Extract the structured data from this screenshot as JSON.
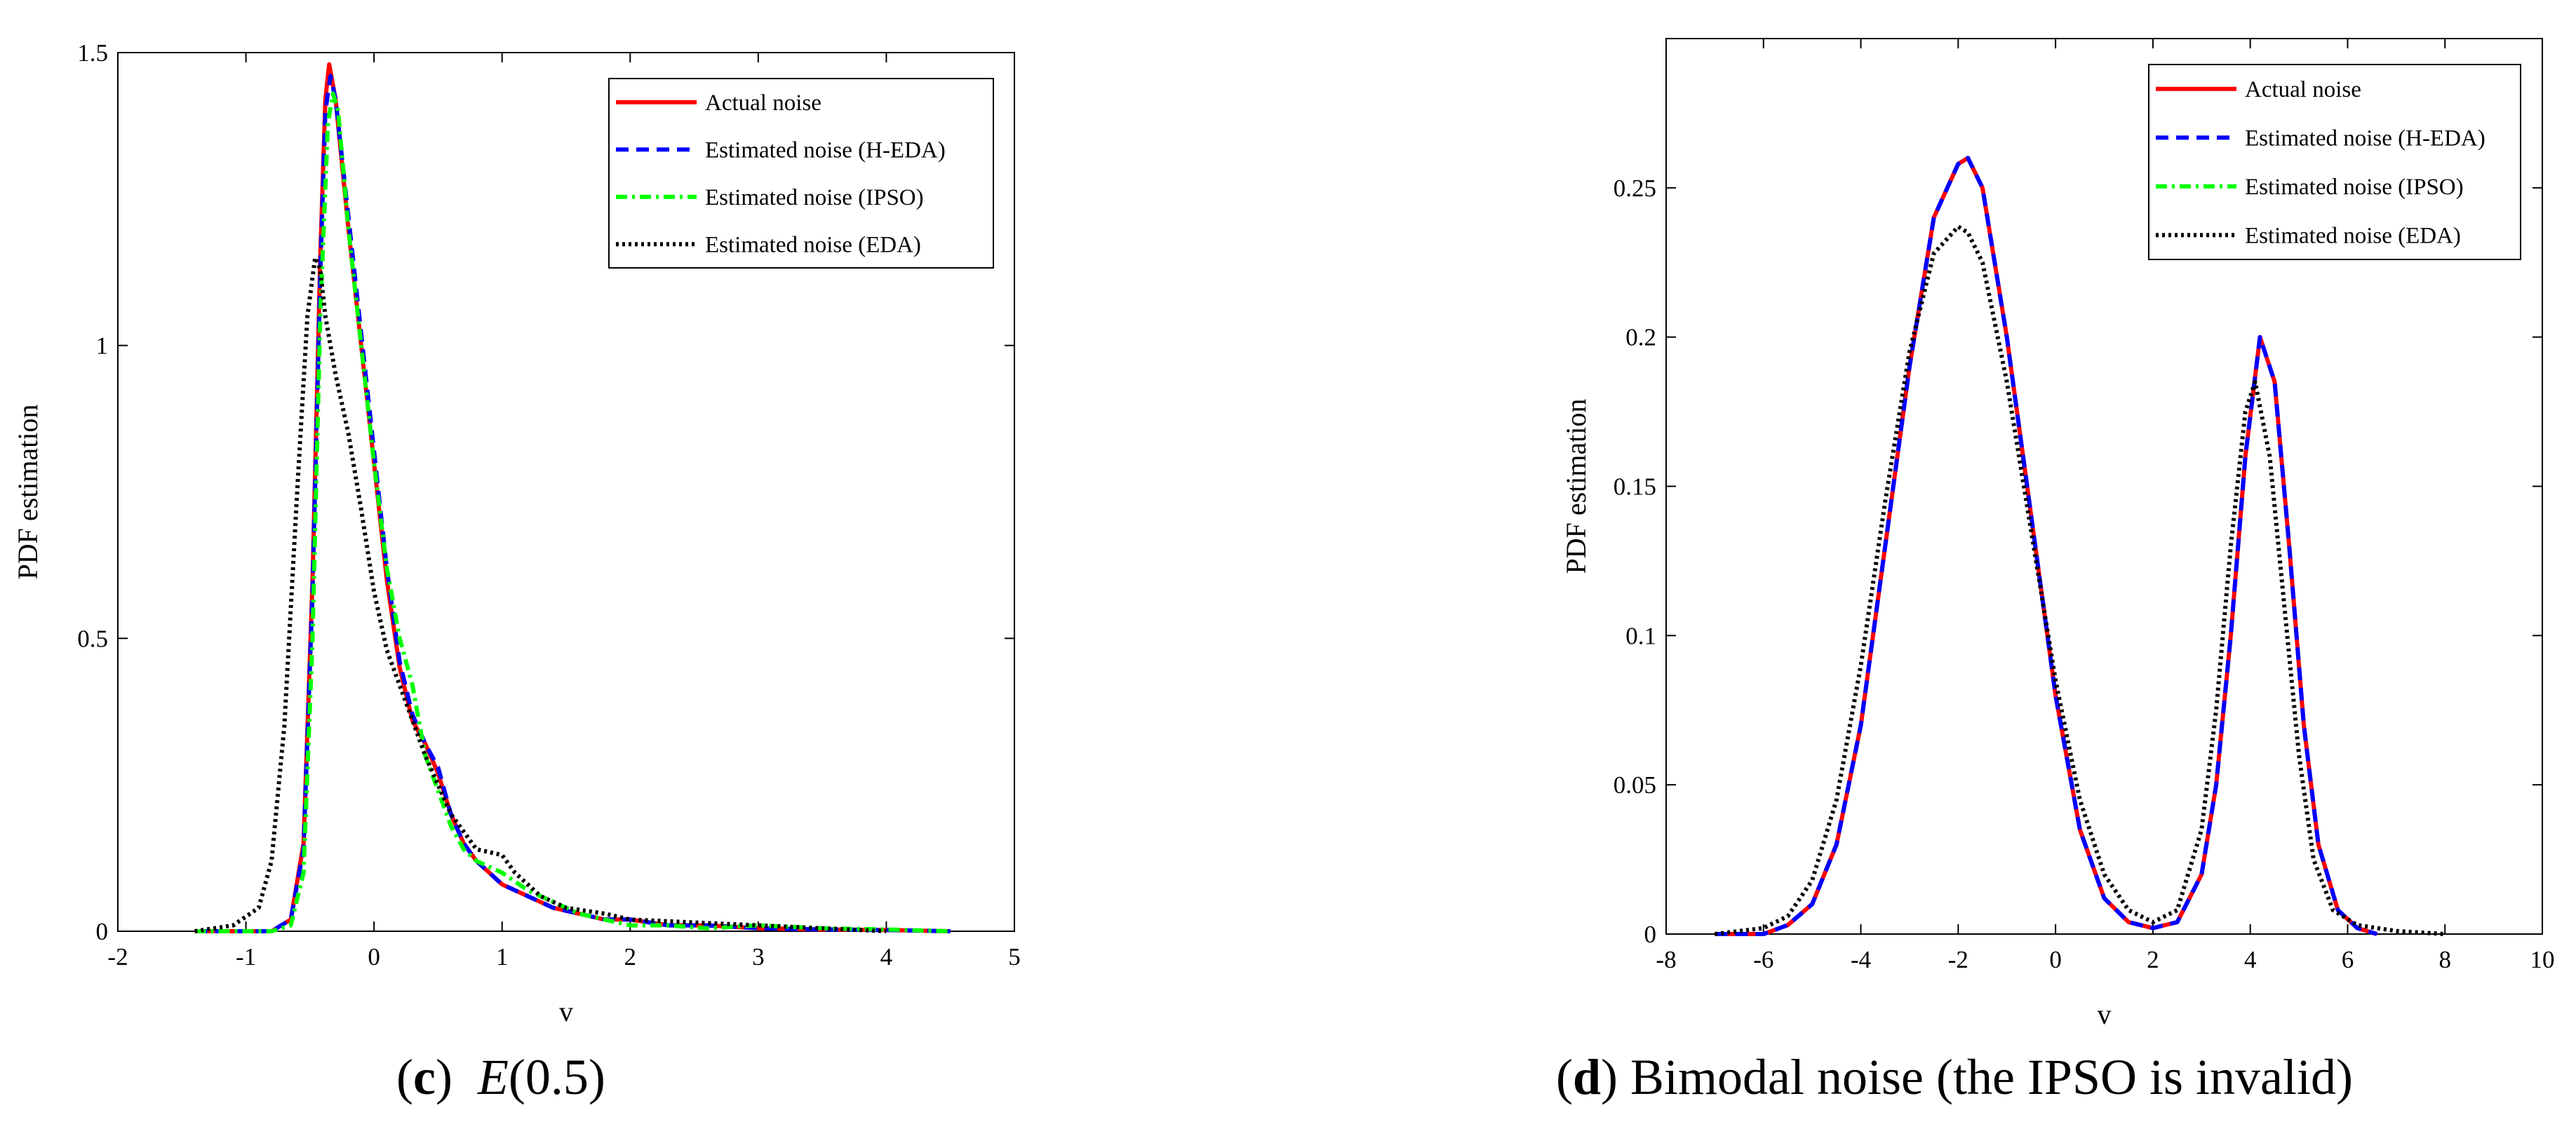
{
  "chart_data": [
    {
      "type": "line",
      "caption": {
        "letter": "c",
        "post": "  ",
        "math_var": "E",
        "math_arg": "(0.5)"
      },
      "xlabel": "v",
      "ylabel": "PDF estimation",
      "xlim": [
        -2,
        5
      ],
      "ylim": [
        0,
        1.5
      ],
      "xticks": [
        "-2",
        "-1",
        "0",
        "1",
        "2",
        "3",
        "4",
        "5"
      ],
      "xtick_values": [
        -2,
        -1,
        0,
        1,
        2,
        3,
        4,
        5
      ],
      "yticks": [
        "0",
        "0.5",
        "1",
        "1.5"
      ],
      "ytick_values": [
        0,
        0.5,
        1,
        1.5
      ],
      "legend_position": "top-right",
      "series": [
        {
          "name": "Actual noise",
          "color": "#ff0000",
          "style": "solid",
          "x": [
            -1.4,
            -0.8,
            -0.65,
            -0.55,
            -0.48,
            -0.42,
            -0.38,
            -0.35,
            -0.3,
            -0.2,
            -0.1,
            0,
            0.1,
            0.2,
            0.3,
            0.4,
            0.5,
            0.6,
            0.7,
            0.8,
            1.0,
            1.2,
            1.4,
            1.6,
            1.8,
            2.0,
            2.3,
            2.6,
            3.0,
            3.5,
            4.0,
            4.5
          ],
          "y": [
            0,
            0,
            0.02,
            0.15,
            0.6,
            1.15,
            1.42,
            1.48,
            1.42,
            1.2,
            1.0,
            0.8,
            0.6,
            0.45,
            0.36,
            0.32,
            0.27,
            0.2,
            0.15,
            0.12,
            0.08,
            0.06,
            0.04,
            0.03,
            0.02,
            0.02,
            0.01,
            0.01,
            0.005,
            0.003,
            0.002,
            0
          ]
        },
        {
          "name": "Estimated noise (H-EDA)",
          "color": "#0000ff",
          "style": "dashed",
          "x": [
            -1.4,
            -0.8,
            -0.65,
            -0.55,
            -0.48,
            -0.42,
            -0.38,
            -0.34,
            -0.3,
            -0.2,
            -0.1,
            0,
            0.1,
            0.2,
            0.3,
            0.4,
            0.5,
            0.6,
            0.7,
            0.8,
            1.0,
            1.2,
            1.4,
            1.6,
            1.8,
            2.0,
            2.3,
            2.6,
            3.0,
            3.5,
            4.0,
            4.5
          ],
          "y": [
            0,
            0,
            0.02,
            0.14,
            0.58,
            1.12,
            1.4,
            1.46,
            1.42,
            1.22,
            1.02,
            0.82,
            0.62,
            0.46,
            0.37,
            0.32,
            0.28,
            0.2,
            0.15,
            0.12,
            0.08,
            0.06,
            0.04,
            0.03,
            0.02,
            0.02,
            0.01,
            0.01,
            0.005,
            0.003,
            0.002,
            0
          ]
        },
        {
          "name": "Estimated noise (IPSO)",
          "color": "#00ff00",
          "style": "dashdot",
          "x": [
            -1.4,
            -0.8,
            -0.65,
            -0.55,
            -0.48,
            -0.42,
            -0.36,
            -0.32,
            -0.28,
            -0.2,
            -0.1,
            0,
            0.1,
            0.2,
            0.3,
            0.4,
            0.5,
            0.6,
            0.7,
            0.8,
            1.0,
            1.2,
            1.4,
            1.6,
            1.8,
            2.0,
            2.3,
            2.6,
            3.0,
            3.5,
            4.0,
            4.5
          ],
          "y": [
            0,
            0,
            0.01,
            0.1,
            0.5,
            1.05,
            1.38,
            1.43,
            1.4,
            1.2,
            1.0,
            0.8,
            0.62,
            0.5,
            0.42,
            0.3,
            0.24,
            0.18,
            0.14,
            0.12,
            0.1,
            0.07,
            0.05,
            0.03,
            0.02,
            0.01,
            0.01,
            0.005,
            0.01,
            0.005,
            0.003,
            0
          ]
        },
        {
          "name": "Estimated noise (EDA)",
          "color": "#000000",
          "style": "dotted",
          "x": [
            -1.4,
            -1.1,
            -0.9,
            -0.8,
            -0.7,
            -0.6,
            -0.52,
            -0.46,
            -0.42,
            -0.38,
            -0.3,
            -0.2,
            -0.1,
            0,
            0.1,
            0.2,
            0.3,
            0.4,
            0.6,
            0.8,
            1.0,
            1.1,
            1.3,
            1.5,
            1.8,
            2.0,
            2.5,
            3.0,
            3.5,
            4.0
          ],
          "y": [
            0,
            0.01,
            0.04,
            0.12,
            0.35,
            0.75,
            1.05,
            1.15,
            1.13,
            1.05,
            0.95,
            0.85,
            0.72,
            0.58,
            0.48,
            0.42,
            0.36,
            0.3,
            0.2,
            0.14,
            0.13,
            0.1,
            0.06,
            0.04,
            0.03,
            0.02,
            0.015,
            0.01,
            0.005,
            0
          ]
        }
      ]
    },
    {
      "type": "line",
      "caption": {
        "letter": "d",
        "post": ") Bimodal noise (the IPSO is invalid)"
      },
      "xlabel": "v",
      "ylabel": "PDF estimation",
      "xlim": [
        -8,
        10
      ],
      "ylim": [
        0,
        0.3
      ],
      "xticks": [
        "-8",
        "-6",
        "-4",
        "-2",
        "0",
        "2",
        "4",
        "6",
        "8",
        "10"
      ],
      "xtick_values": [
        -8,
        -6,
        -4,
        -2,
        0,
        2,
        4,
        6,
        8,
        10
      ],
      "yticks": [
        "0",
        "0.05",
        "0.1",
        "0.15",
        "0.2",
        "0.25"
      ],
      "ytick_values": [
        0,
        0.05,
        0.1,
        0.15,
        0.2,
        0.25
      ],
      "legend_position": "top-right",
      "series": [
        {
          "name": "Actual noise",
          "color": "#ff0000",
          "style": "solid",
          "x": [
            -7,
            -6,
            -5.5,
            -5,
            -4.5,
            -4,
            -3.5,
            -3,
            -2.5,
            -2,
            -1.8,
            -1.5,
            -1,
            -0.5,
            0,
            0.5,
            1,
            1.5,
            2,
            2.5,
            3,
            3.3,
            3.6,
            3.9,
            4.2,
            4.5,
            4.8,
            5.1,
            5.4,
            5.8,
            6.2,
            6.6
          ],
          "y": [
            0,
            0,
            0.003,
            0.01,
            0.03,
            0.07,
            0.13,
            0.19,
            0.24,
            0.258,
            0.26,
            0.25,
            0.2,
            0.14,
            0.08,
            0.035,
            0.012,
            0.004,
            0.002,
            0.004,
            0.02,
            0.05,
            0.1,
            0.16,
            0.2,
            0.185,
            0.13,
            0.07,
            0.03,
            0.008,
            0.002,
            0
          ]
        },
        {
          "name": "Estimated noise (H-EDA)",
          "color": "#0000ff",
          "style": "dashed",
          "x": [
            -7,
            -6,
            -5.5,
            -5,
            -4.5,
            -4,
            -3.5,
            -3,
            -2.5,
            -2,
            -1.8,
            -1.5,
            -1,
            -0.5,
            0,
            0.5,
            1,
            1.5,
            2,
            2.5,
            3,
            3.3,
            3.6,
            3.9,
            4.2,
            4.5,
            4.8,
            5.1,
            5.4,
            5.8,
            6.2,
            6.6
          ],
          "y": [
            0,
            0,
            0.003,
            0.01,
            0.03,
            0.07,
            0.13,
            0.19,
            0.24,
            0.258,
            0.26,
            0.25,
            0.2,
            0.14,
            0.08,
            0.035,
            0.012,
            0.004,
            0.002,
            0.004,
            0.02,
            0.05,
            0.1,
            0.16,
            0.2,
            0.185,
            0.13,
            0.07,
            0.03,
            0.008,
            0.002,
            0
          ]
        },
        {
          "name": "Estimated noise (IPSO)",
          "color": "#00ff00",
          "style": "dashdot",
          "x": [],
          "y": []
        },
        {
          "name": "Estimated noise (EDA)",
          "color": "#000000",
          "style": "dotted",
          "x": [
            -7,
            -6,
            -5.5,
            -5,
            -4.5,
            -4,
            -3.5,
            -3,
            -2.5,
            -2,
            -1.8,
            -1.5,
            -1,
            -0.5,
            0,
            0.5,
            1,
            1.5,
            2,
            2.5,
            3,
            3.3,
            3.6,
            3.9,
            4.1,
            4.4,
            4.7,
            5.0,
            5.3,
            5.7,
            6.2,
            7,
            8
          ],
          "y": [
            0,
            0.002,
            0.006,
            0.018,
            0.045,
            0.09,
            0.145,
            0.195,
            0.228,
            0.237,
            0.235,
            0.225,
            0.185,
            0.135,
            0.085,
            0.045,
            0.02,
            0.008,
            0.004,
            0.008,
            0.035,
            0.075,
            0.13,
            0.175,
            0.185,
            0.16,
            0.11,
            0.06,
            0.025,
            0.008,
            0.003,
            0.001,
            0
          ]
        }
      ]
    }
  ]
}
